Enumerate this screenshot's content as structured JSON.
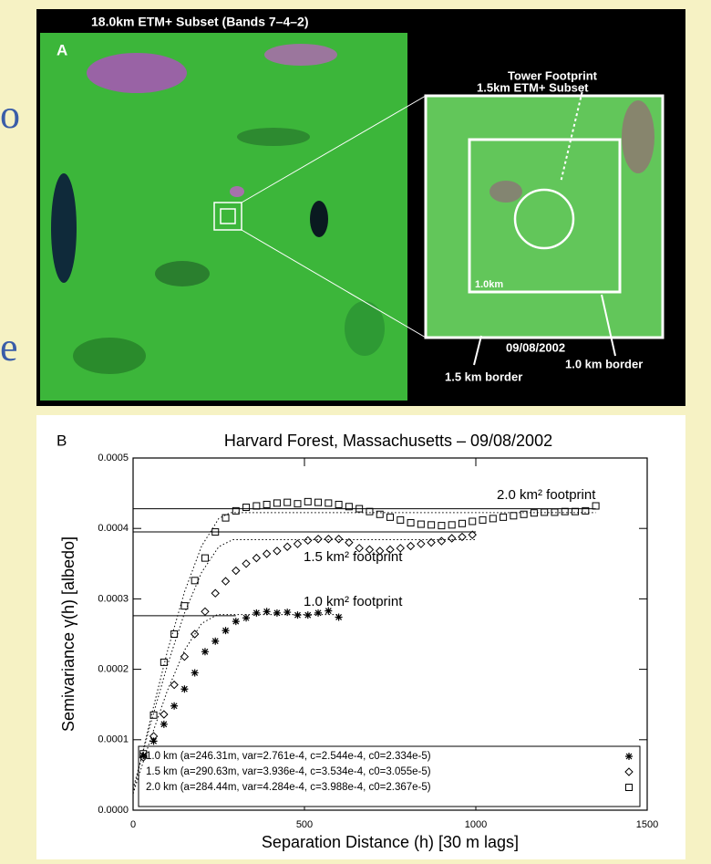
{
  "slide_fragments": [
    "o",
    "e"
  ],
  "panel_a": {
    "label": "A",
    "title": "18.0km ETM+ Subset (Bands 7–4–2)",
    "tower": "Tower Footprint",
    "subset": "1.5km ETM+ Subset",
    "inner": "1.0km",
    "date": "09/08/2002",
    "border_15": "1.5 km border",
    "border_10": "1.0 km border"
  },
  "chart_data": {
    "type": "scatter",
    "panel_label": "B",
    "title": "Harvard Forest, Massachusetts – 09/08/2002",
    "x_label": "Separation Distance (h) [30 m lags]",
    "y_label": "Semivariance γ(h) [albedo]",
    "xlim": [
      0,
      1500
    ],
    "xticks": [
      0,
      500,
      1000,
      1500
    ],
    "ylim": [
      0,
      0.0005
    ],
    "yticks": [
      {
        "value": 0,
        "label": "0.0000"
      },
      {
        "value": 0.0001,
        "label": "0.0001"
      },
      {
        "value": 0.0002,
        "label": "0.0002"
      },
      {
        "value": 0.0003,
        "label": "0.0003"
      },
      {
        "value": 0.0004,
        "label": "0.0004"
      },
      {
        "value": 0.0005,
        "label": "0.0005"
      }
    ],
    "annotations": [
      "2.0 km² footprint",
      "1.5 km² footprint",
      "1.0 km² footprint"
    ],
    "series": [
      {
        "name": "1.0 km (a=246.31m, var=2.761e-4, c=2.544e-4, c0=2.334e-5)",
        "marker": "asterisk",
        "color": "#000000",
        "x": [
          30,
          60,
          90,
          120,
          150,
          180,
          210,
          240,
          270,
          300,
          330,
          360,
          390,
          420,
          450,
          480,
          510,
          540,
          570,
          600
        ],
        "values": [
          7.75e-05,
          9.8e-05,
          0.000122,
          0.000148,
          0.000172,
          0.000195,
          0.000225,
          0.00024,
          0.000255,
          0.000268,
          0.000273,
          0.00028,
          0.000282,
          0.00028,
          0.000281,
          0.000277,
          0.000277,
          0.00028,
          0.000283,
          0.000274
        ],
        "fit_x": [
          0,
          50,
          100,
          150,
          200,
          246,
          600
        ],
        "fit_values": [
          2.33e-05,
          9.97e-05,
          0.0001697,
          0.000227,
          0.0002651,
          0.0002777,
          0.0002777
        ],
        "sill": 0.000276,
        "sill_x": [
          0,
          300
        ]
      },
      {
        "name": "1.5 km (a=290.63m, var=3.936e-4, c=3.534e-4, c0=3.055e-5)",
        "marker": "diamond",
        "color": "#000000",
        "x": [
          30,
          60,
          90,
          120,
          150,
          180,
          210,
          240,
          270,
          300,
          330,
          360,
          390,
          420,
          450,
          480,
          510,
          540,
          570,
          600,
          630,
          660,
          690,
          720,
          750,
          780,
          810,
          840,
          870,
          900,
          930,
          960,
          990
        ],
        "values": [
          7.5e-05,
          0.000105,
          0.000136,
          0.000178,
          0.000218,
          0.00025,
          0.000282,
          0.000308,
          0.000325,
          0.00034,
          0.00035,
          0.000358,
          0.000364,
          0.000368,
          0.000374,
          0.000378,
          0.000383,
          0.000385,
          0.000385,
          0.000385,
          0.00038,
          0.000372,
          0.00037,
          0.000368,
          0.00037,
          0.000372,
          0.000375,
          0.000378,
          0.00038,
          0.000382,
          0.000386,
          0.000388,
          0.000391
        ],
        "fit_x": [
          0,
          50,
          100,
          150,
          200,
          250,
          291,
          1000
        ],
        "fit_values": [
          3.06e-05,
          0.0001208,
          0.0002057,
          0.0002798,
          0.0003377,
          0.0003741,
          0.000384,
          0.000384
        ],
        "sill": 0.000395,
        "sill_x": [
          0,
          1000
        ]
      },
      {
        "name": "2.0 km (a=284.44m, var=4.284e-4, c=3.988e-4, c0=2.367e-5)",
        "marker": "square",
        "color": "#000000",
        "x": [
          30,
          60,
          90,
          120,
          150,
          180,
          210,
          240,
          270,
          300,
          330,
          360,
          390,
          420,
          450,
          480,
          510,
          540,
          570,
          600,
          630,
          660,
          690,
          720,
          750,
          780,
          810,
          840,
          870,
          900,
          930,
          960,
          990,
          1020,
          1050,
          1080,
          1110,
          1140,
          1170,
          1200,
          1230,
          1260,
          1290,
          1320,
          1350
        ],
        "values": [
          8e-05,
          0.000135,
          0.00021,
          0.00025,
          0.00029,
          0.000326,
          0.000358,
          0.000395,
          0.000415,
          0.000425,
          0.00043,
          0.000432,
          0.000434,
          0.000436,
          0.000437,
          0.000435,
          0.000438,
          0.000437,
          0.000436,
          0.000434,
          0.000431,
          0.000428,
          0.000424,
          0.00042,
          0.000416,
          0.000412,
          0.000408,
          0.000406,
          0.000405,
          0.000404,
          0.000405,
          0.000407,
          0.00041,
          0.000412,
          0.000414,
          0.000416,
          0.000418,
          0.00042,
          0.000422,
          0.000423,
          0.000423,
          0.000424,
          0.000424,
          0.000425,
          0.000432
        ],
        "fit_x": [
          0,
          50,
          100,
          150,
          200,
          250,
          284,
          1350
        ],
        "fit_values": [
          2.37e-05,
          0.0001278,
          0.0002253,
          0.0003099,
          0.000375,
          0.0004141,
          0.0004225,
          0.0004225
        ],
        "sill": 0.000428,
        "sill_x": [
          0,
          1350
        ]
      }
    ]
  }
}
